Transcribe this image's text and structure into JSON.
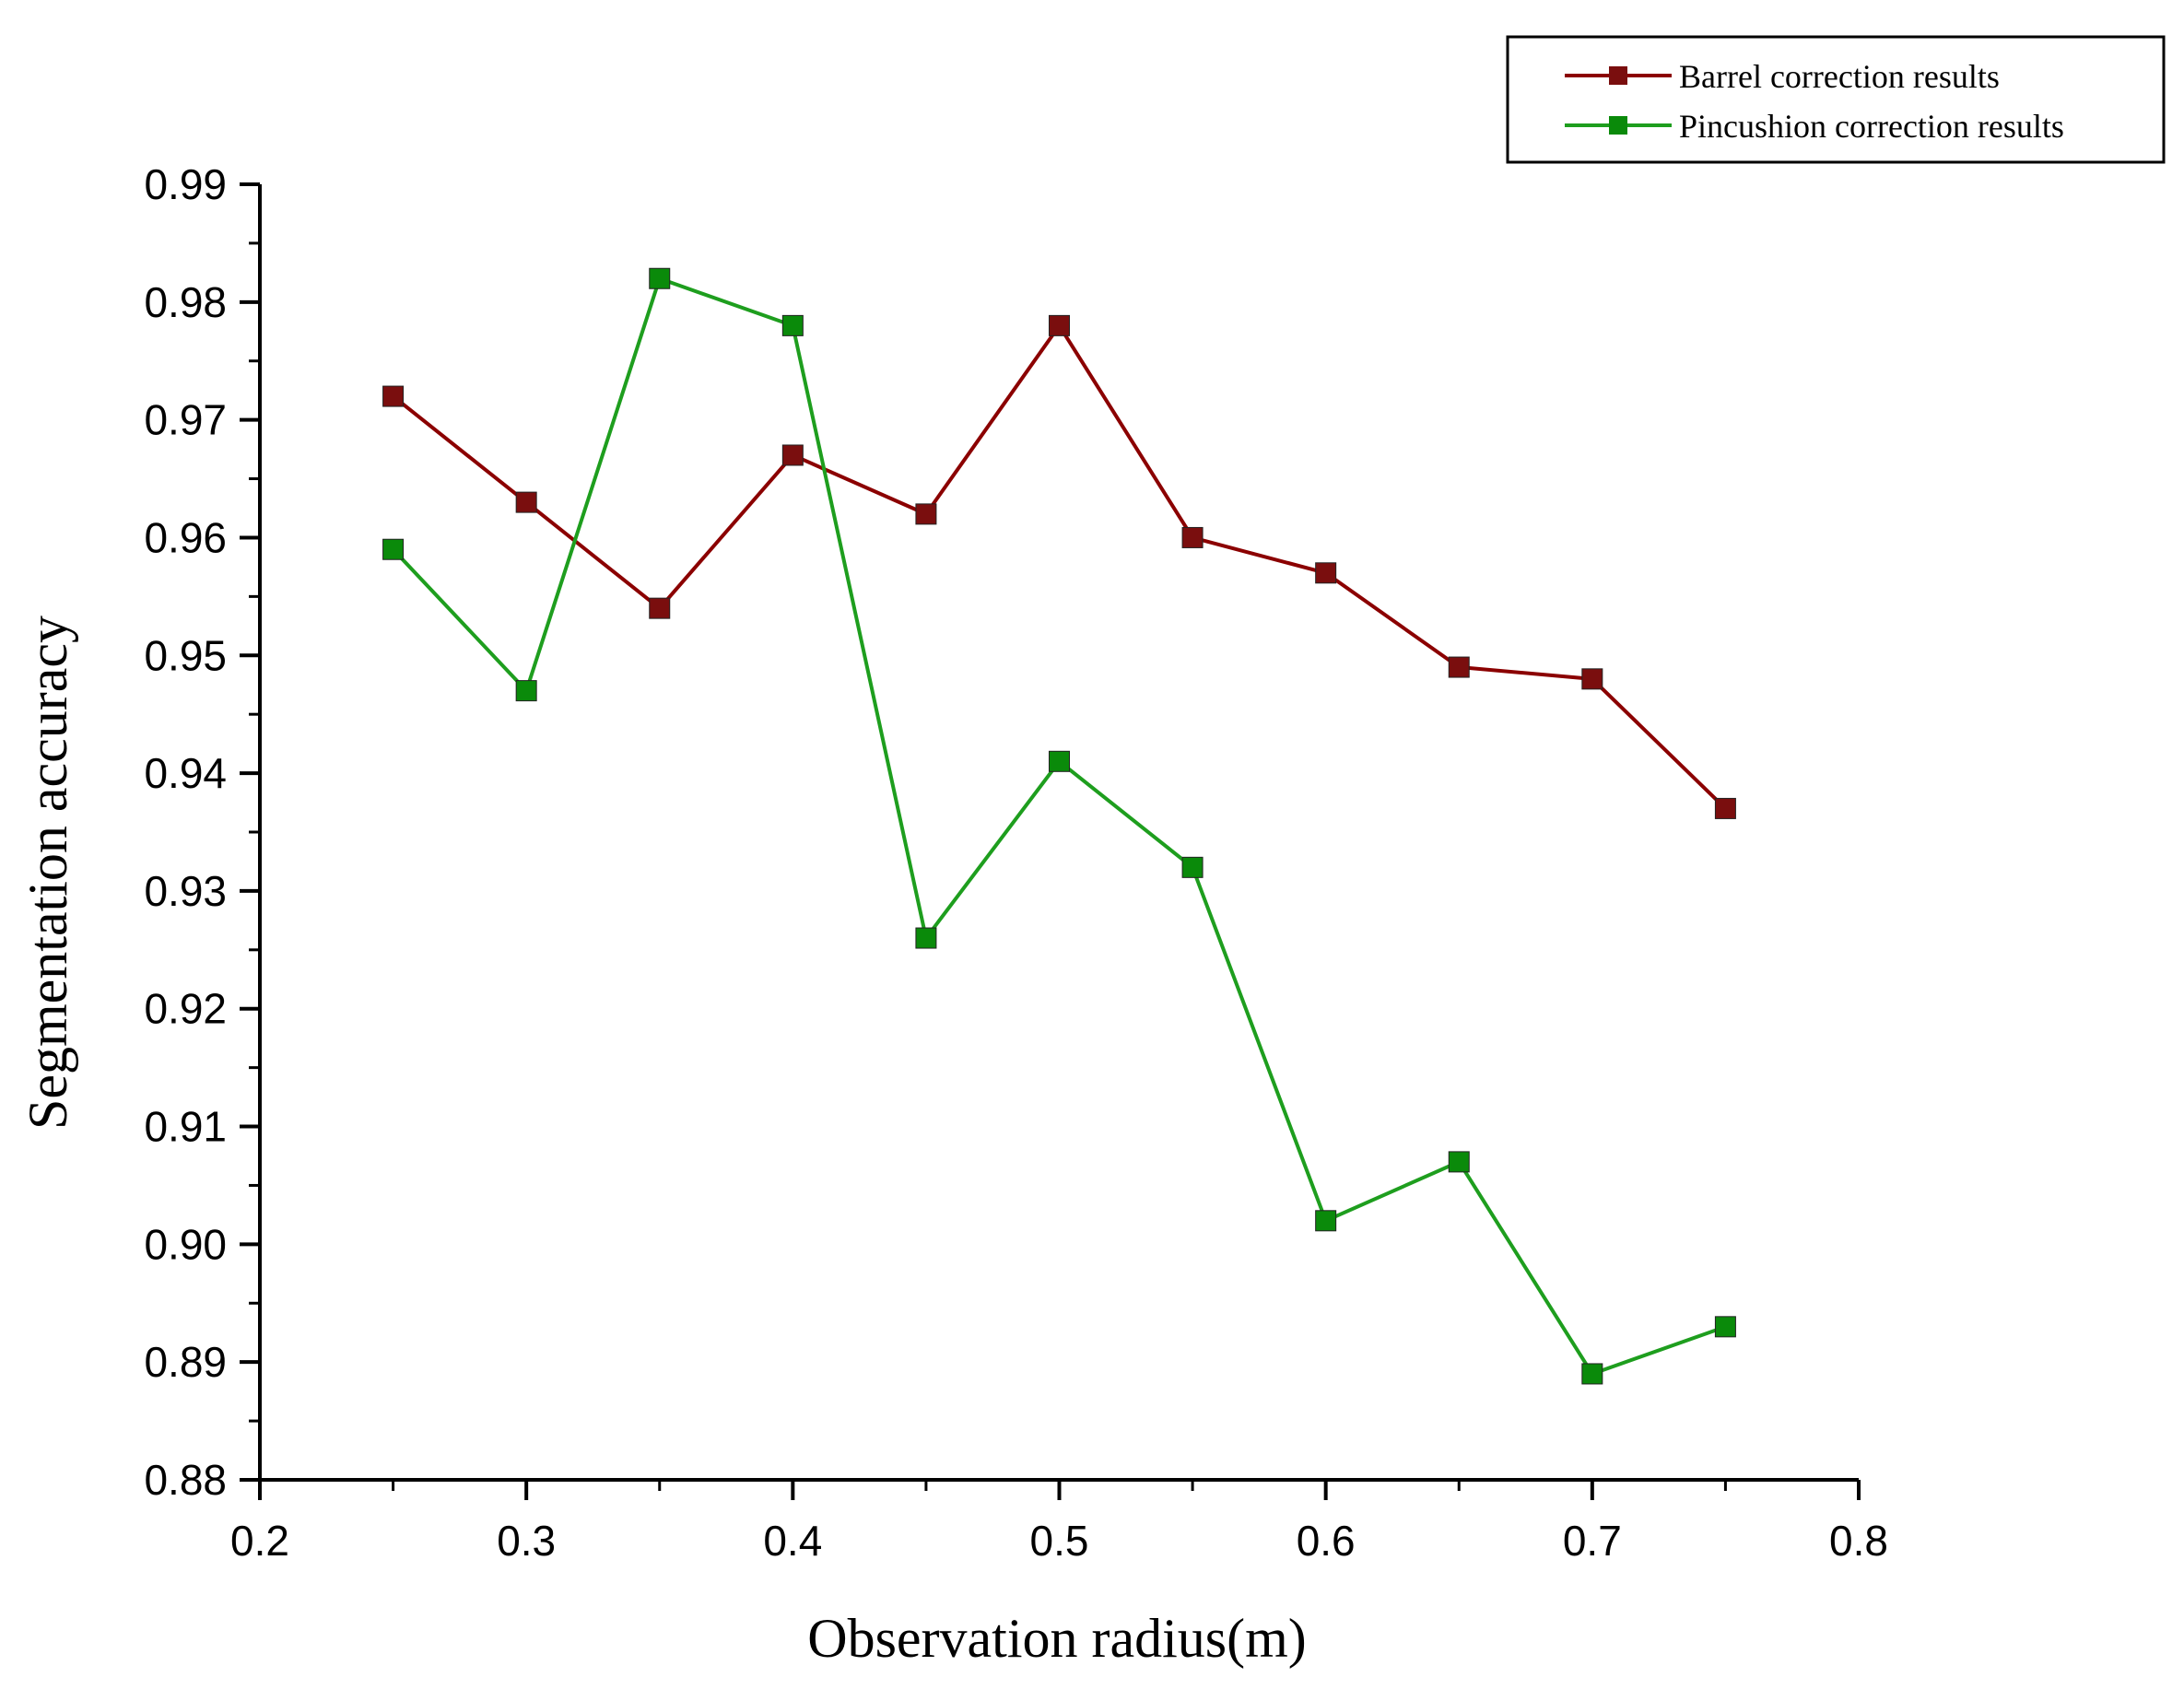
{
  "chart_data": {
    "type": "line",
    "title": "",
    "xlabel": "Observation radius(m)",
    "ylabel": "Segmentation accuracy",
    "xlim": [
      0.2,
      0.8
    ],
    "ylim": [
      0.88,
      0.99
    ],
    "x_ticks": [
      "0.2",
      "0.3",
      "0.4",
      "0.5",
      "0.6",
      "0.7",
      "0.8"
    ],
    "y_ticks": [
      "0.88",
      "0.89",
      "0.90",
      "0.91",
      "0.92",
      "0.93",
      "0.94",
      "0.95",
      "0.96",
      "0.97",
      "0.98",
      "0.99"
    ],
    "grid": false,
    "legend_position": "top-right",
    "x": [
      0.25,
      0.3,
      0.35,
      0.4,
      0.45,
      0.5,
      0.55,
      0.6,
      0.65,
      0.7,
      0.75
    ],
    "series": [
      {
        "name": "Barrel correction results",
        "color": "#8B0000",
        "marker_color": "#7A0E0E",
        "values": [
          0.972,
          0.963,
          0.954,
          0.967,
          0.962,
          0.978,
          0.96,
          0.957,
          0.949,
          0.948,
          0.937
        ]
      },
      {
        "name": "Pincushion correction results",
        "color": "#1E9E1E",
        "marker_color": "#0A8A0A",
        "values": [
          0.959,
          0.947,
          0.982,
          0.978,
          0.926,
          0.941,
          0.932,
          0.902,
          0.907,
          0.889,
          0.893
        ]
      }
    ]
  }
}
